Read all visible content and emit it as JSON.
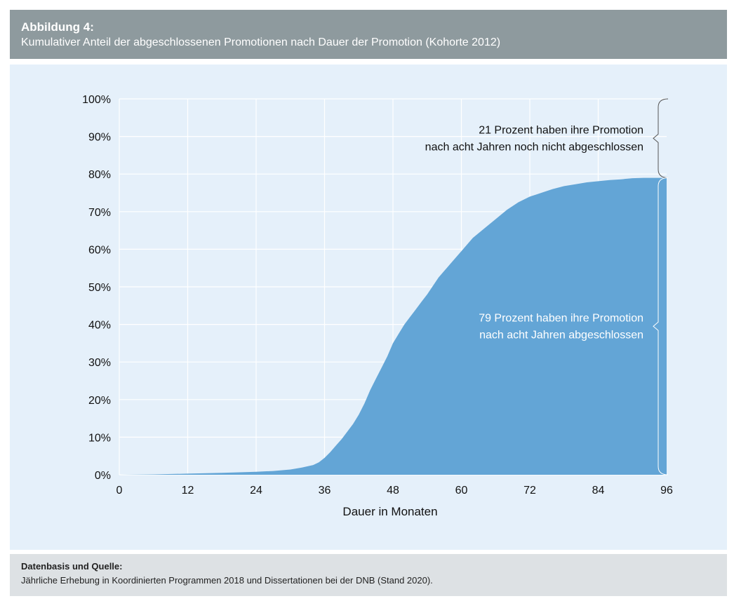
{
  "header": {
    "figure_label": "Abbildung 4:",
    "title": "Kumulativer Anteil der abgeschlossenen Promotionen nach Dauer der Promotion (Kohorte 2012)"
  },
  "source": {
    "label": "Datenbasis und Quelle:",
    "text": "Jährliche Erhebung in Koordinierten Programmen 2018 und Dissertationen bei der DNB (Stand 2020)."
  },
  "colors": {
    "area": "#63a5d6",
    "panel": "#e5f0fa",
    "header": "#8e9a9e",
    "source": "#dde1e4"
  },
  "chart_data": {
    "type": "area",
    "title": "",
    "xlabel": "Dauer in Monaten",
    "ylabel": "",
    "xlim": [
      0,
      96
    ],
    "ylim": [
      0,
      100
    ],
    "grid": true,
    "xticks": [
      0,
      12,
      24,
      36,
      48,
      60,
      72,
      84,
      96
    ],
    "yticks": [
      0,
      10,
      20,
      30,
      40,
      50,
      60,
      70,
      80,
      90,
      100
    ],
    "y_tick_suffix": "%",
    "x": [
      0,
      6,
      12,
      18,
      24,
      27,
      30,
      32,
      34,
      35,
      36,
      37,
      38,
      39,
      40,
      41,
      42,
      43,
      44,
      45,
      46,
      47,
      48,
      49,
      50,
      51,
      52,
      53,
      54,
      56,
      58,
      60,
      62,
      64,
      66,
      68,
      70,
      72,
      74,
      76,
      78,
      80,
      82,
      84,
      86,
      88,
      90,
      92,
      94,
      96
    ],
    "values": [
      0,
      0.1,
      0.3,
      0.5,
      0.8,
      1,
      1.4,
      1.9,
      2.6,
      3.3,
      4.5,
      6,
      7.8,
      9.5,
      11.5,
      13.5,
      16,
      19,
      22.5,
      25.5,
      28.5,
      31.5,
      35,
      37.5,
      40,
      42,
      44,
      46,
      48,
      52.5,
      56,
      59.5,
      63,
      65.5,
      68,
      70.5,
      72.5,
      74,
      75,
      76,
      76.8,
      77.3,
      77.8,
      78.1,
      78.4,
      78.6,
      78.9,
      79,
      79,
      79
    ],
    "annotations": [
      {
        "lines": [
          "21 Prozent haben ihre Promotion",
          "nach acht Jahren noch nicht abgeschlossen"
        ],
        "range": [
          79,
          100
        ]
      },
      {
        "lines": [
          "79 Prozent haben ihre Promotion",
          "nach acht Jahren abgeschlossen"
        ],
        "range": [
          0,
          79
        ]
      }
    ]
  }
}
